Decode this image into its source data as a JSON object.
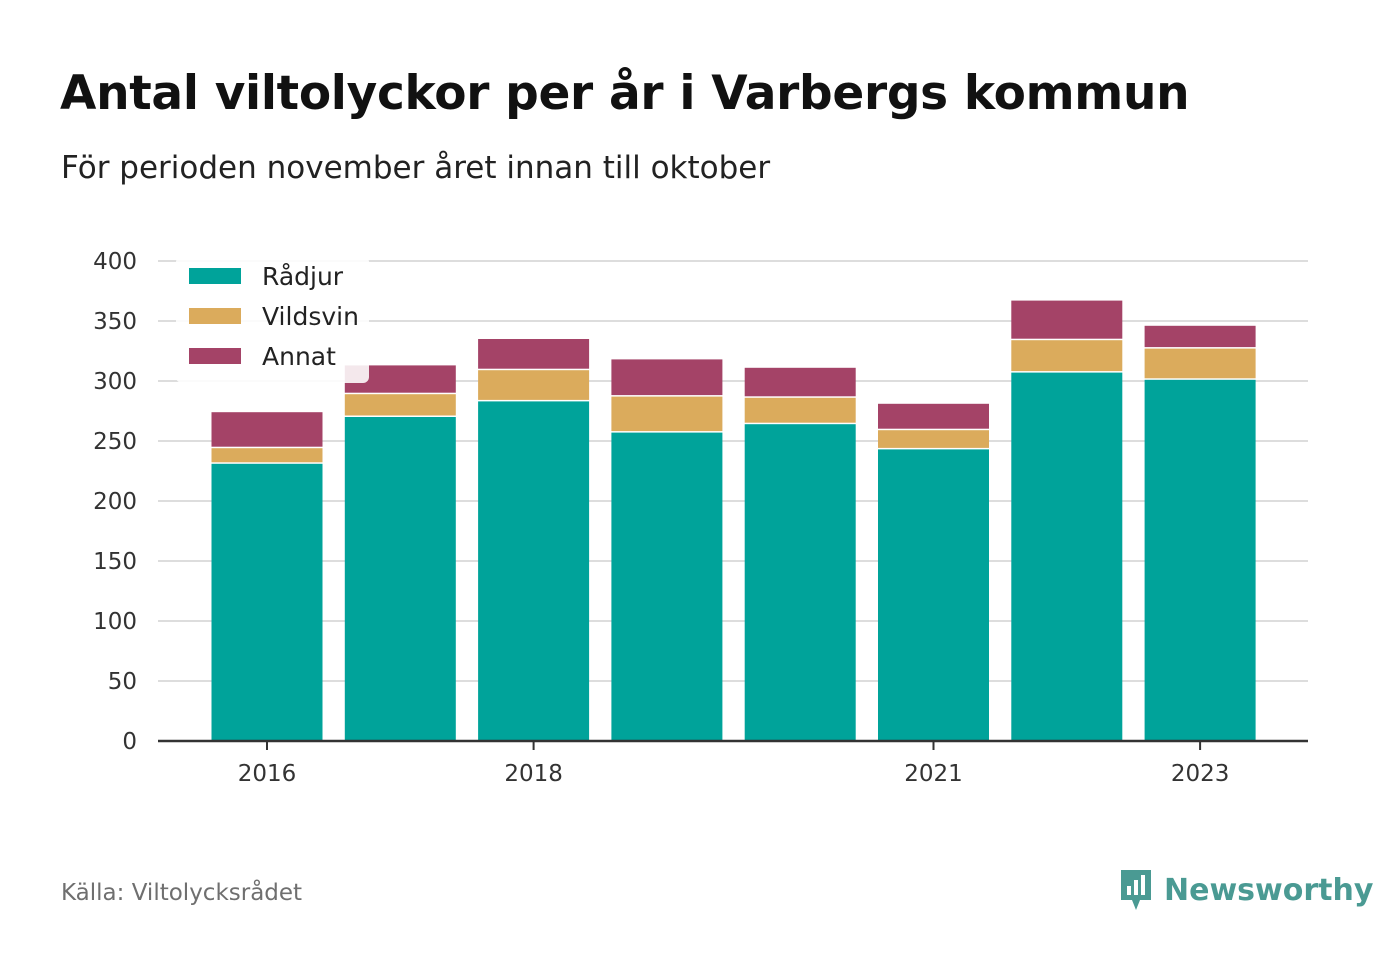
{
  "title": "Antal viltolyckor per år i Varbergs kommun",
  "subtitle": "För perioden november året innan till oktober",
  "source": "Källa: Viltolycksrådet",
  "brand": {
    "name": "Newsworthy",
    "icon": "newsworthy-logo-icon",
    "color": "#4a9a93"
  },
  "chart_data": {
    "type": "bar",
    "stacked": true,
    "categories": [
      "2016",
      "2017",
      "2018",
      "2019",
      "2020",
      "2021",
      "2022",
      "2023"
    ],
    "x_tick_labels": [
      "2016",
      "2018",
      "2021",
      "2023"
    ],
    "series": [
      {
        "name": "Rådjur",
        "color": "#00a39a",
        "values": [
          231,
          270,
          283,
          257,
          264,
          243,
          307,
          301
        ]
      },
      {
        "name": "Vildsvin",
        "color": "#dbab5c",
        "values": [
          13,
          19,
          26,
          30,
          22,
          16,
          27,
          26
        ]
      },
      {
        "name": "Annat",
        "color": "#a44367",
        "values": [
          30,
          24,
          26,
          31,
          25,
          22,
          33,
          19
        ]
      }
    ],
    "ylim": [
      0,
      400
    ],
    "y_ticks": [
      0,
      50,
      100,
      150,
      200,
      250,
      300,
      350,
      400
    ],
    "grid": true,
    "legend_position": "top-left",
    "xlabel": "",
    "ylabel": ""
  }
}
